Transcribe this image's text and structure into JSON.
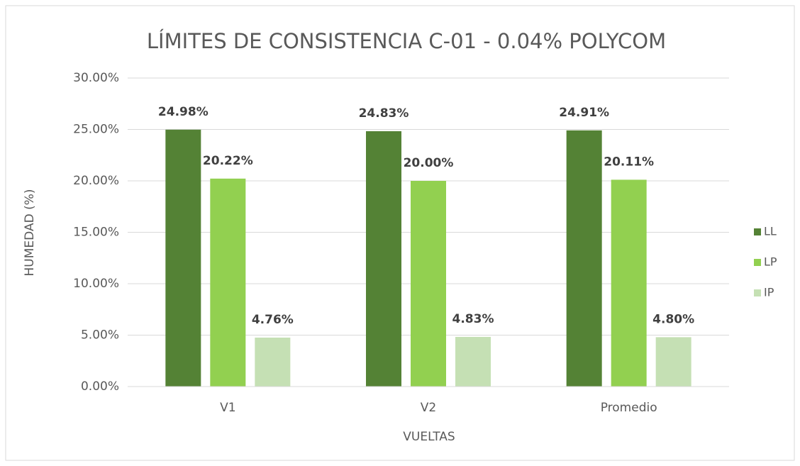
{
  "chart_data": {
    "type": "bar",
    "title": "LÍMITES DE CONSISTENCIA C-01 - 0.04% POLYCOM",
    "x_label": "VUELTAS",
    "y_label": "HUMEDAD (%)",
    "categories": [
      "V1",
      "V2",
      "Promedio"
    ],
    "series": [
      {
        "name": "LL",
        "color": "#548235",
        "values": [
          24.98,
          24.83,
          24.91
        ],
        "value_labels": [
          "24.98%",
          "24.83%",
          "24.91%"
        ]
      },
      {
        "name": "LP",
        "color": "#92d050",
        "values": [
          20.22,
          20.0,
          20.11
        ],
        "value_labels": [
          "20.22%",
          "20.00%",
          "20.11%"
        ]
      },
      {
        "name": "IP",
        "color": "#c5e0b4",
        "values": [
          4.76,
          4.83,
          4.8
        ],
        "value_labels": [
          "4.76%",
          "4.83%",
          "4.80%"
        ]
      }
    ],
    "ylim": [
      0,
      30
    ],
    "yticks": [
      {
        "value": 0,
        "label": "0.00%"
      },
      {
        "value": 5,
        "label": "5.00%"
      },
      {
        "value": 10,
        "label": "10.00%"
      },
      {
        "value": 15,
        "label": "15.00%"
      },
      {
        "value": 20,
        "label": "20.00%"
      },
      {
        "value": 25,
        "label": "25.00%"
      },
      {
        "value": 30,
        "label": "30.00%"
      }
    ],
    "grid": true,
    "legend": "right"
  }
}
